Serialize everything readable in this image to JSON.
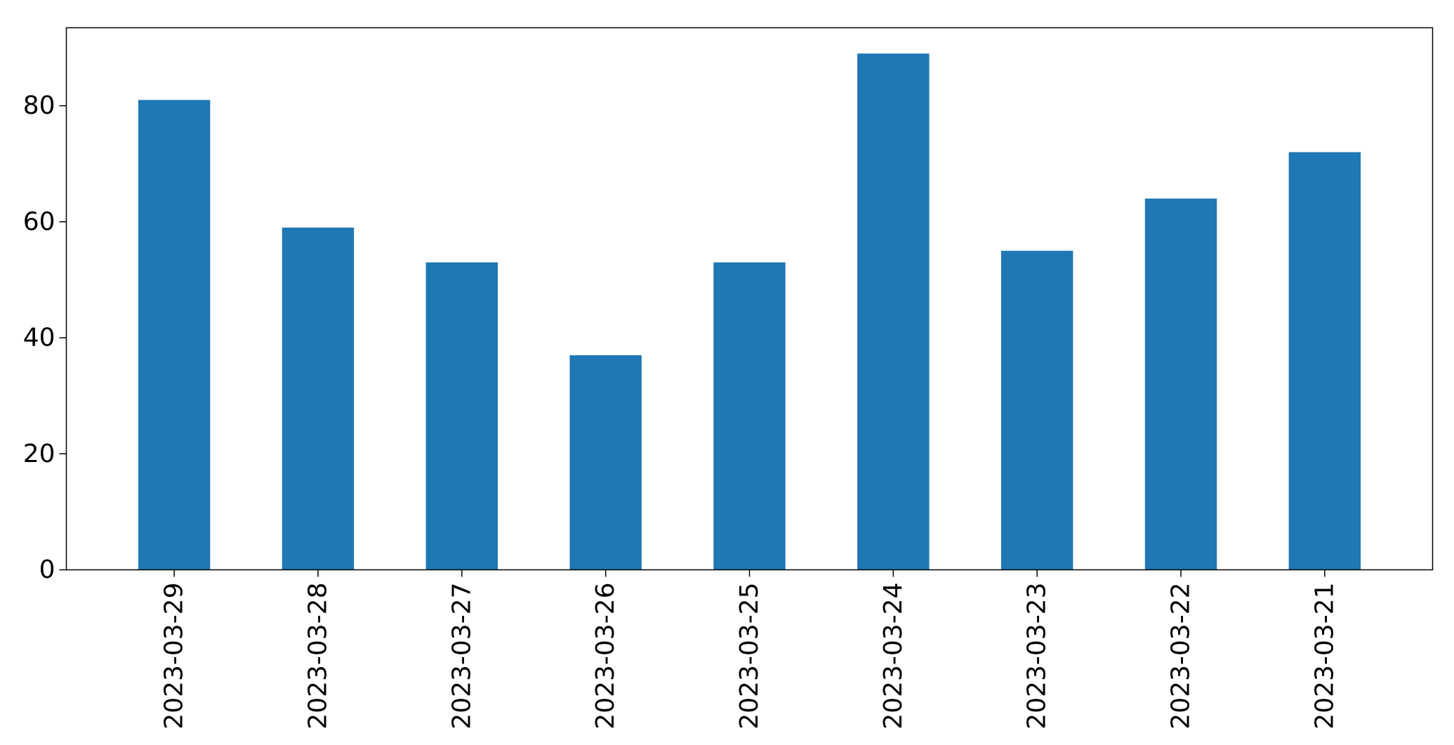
{
  "chart_data": {
    "type": "bar",
    "categories": [
      "2023-03-29",
      "2023-03-28",
      "2023-03-27",
      "2023-03-26",
      "2023-03-25",
      "2023-03-24",
      "2023-03-23",
      "2023-03-22",
      "2023-03-21"
    ],
    "values": [
      81,
      59,
      53,
      37,
      53,
      89,
      55,
      64,
      72
    ],
    "ylim": [
      0,
      93.45
    ],
    "yticks": [
      0,
      20,
      40,
      60,
      80
    ],
    "title": "",
    "xlabel": "",
    "ylabel": "",
    "grid": false,
    "bar_color": "#1f77b4",
    "x_tick_rotation": "vertical"
  }
}
